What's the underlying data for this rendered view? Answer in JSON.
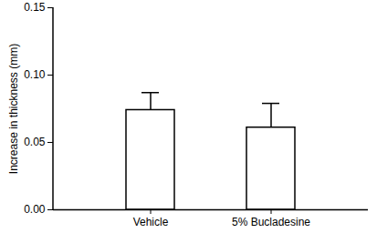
{
  "chart_data": {
    "type": "bar",
    "categories": [
      "Vehicle",
      "5% Bucladesine"
    ],
    "values": [
      0.074,
      0.061
    ],
    "errors": [
      0.013,
      0.018
    ],
    "color": "#ffffff",
    "y_label": "Increase in thickness (mm)",
    "ylim": [
      0,
      0.15
    ],
    "yticks": [
      {
        "value": 0,
        "label": "0.00"
      },
      {
        "value": 0.05,
        "label": "0.05"
      },
      {
        "value": 0.1,
        "label": "0.10"
      },
      {
        "value": 0.15,
        "label": "0.15"
      }
    ],
    "grid": false
  }
}
